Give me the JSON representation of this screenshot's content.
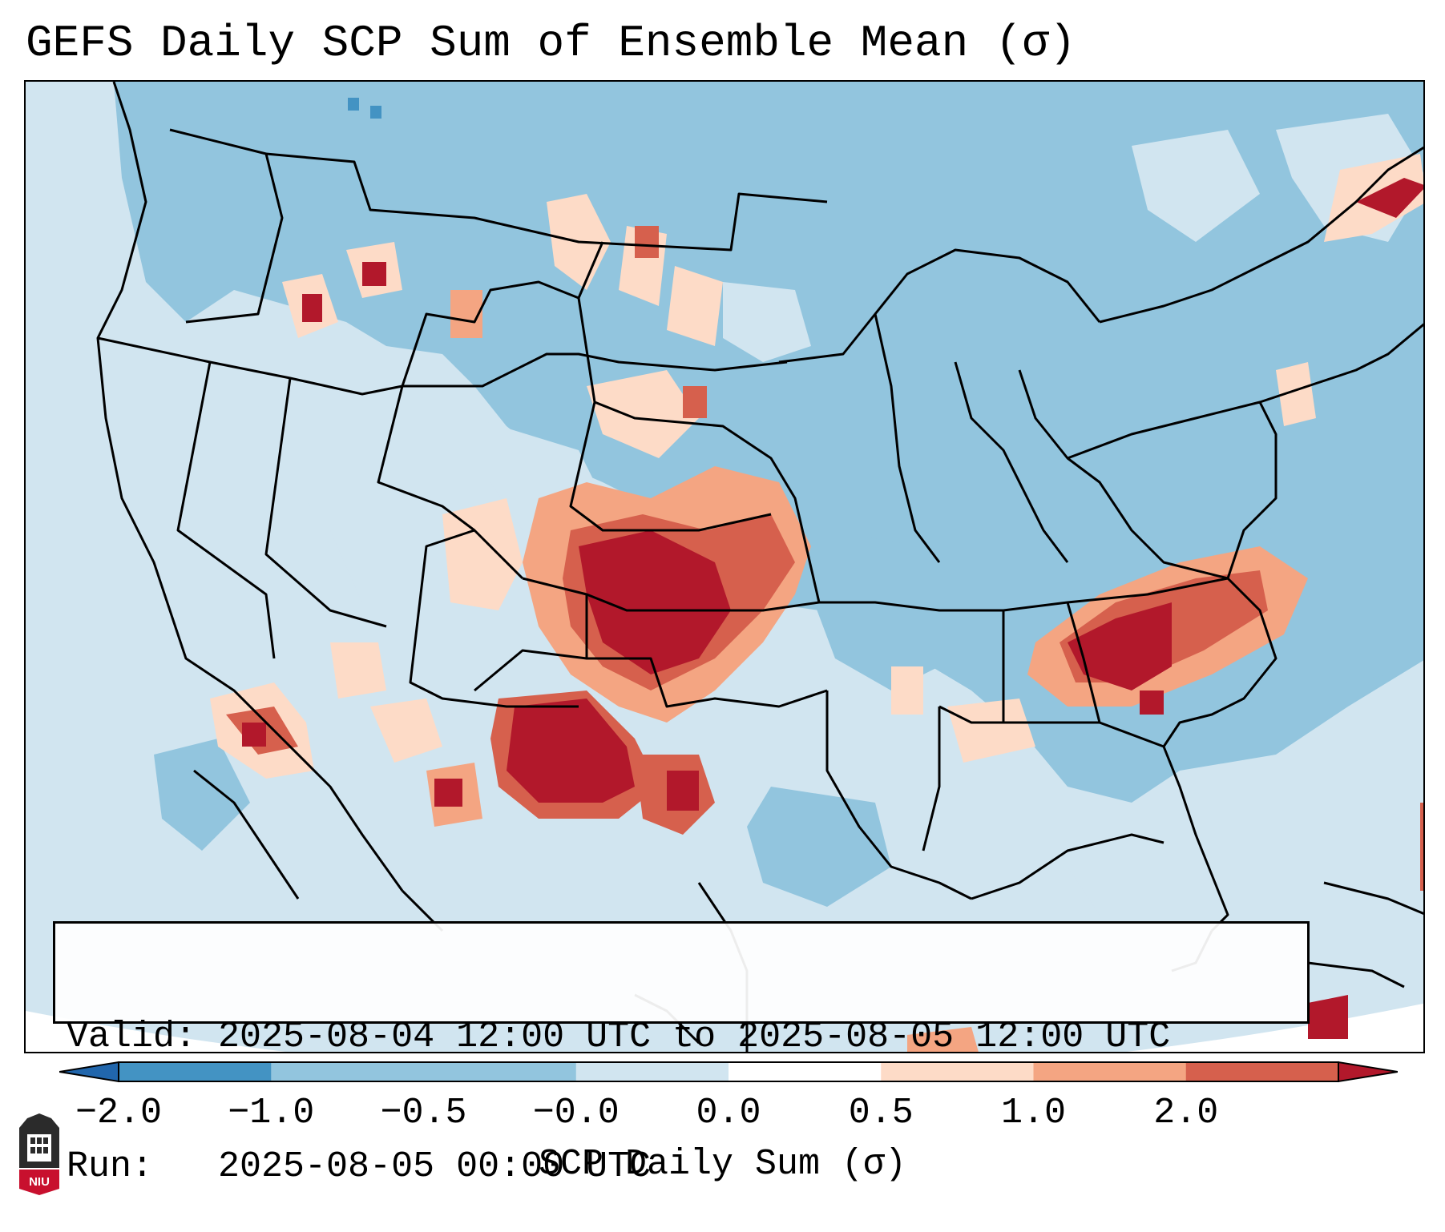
{
  "title": "GEFS Daily SCP Sum of Ensemble Mean (σ)",
  "info": {
    "valid_line": "Valid: 2025-08-04 12:00 UTC to 2025-08-05 12:00 UTC",
    "run_line": "Run:   2025-08-05 00:00 UTC"
  },
  "colorbar": {
    "label": "SCP Daily Sum (σ)",
    "ticks": [
      "−2.0",
      "−1.0",
      "−0.5",
      "−0.0",
      "0.0",
      "0.5",
      "1.0",
      "2.0"
    ],
    "bins": [
      {
        "color": "#4393c3"
      },
      {
        "color": "#92c5de"
      },
      {
        "color": "#92c5de"
      },
      {
        "color": "#d1e5f0"
      },
      {
        "color": "#ffffff"
      },
      {
        "color": "#fddbc7"
      },
      {
        "color": "#f4a582"
      },
      {
        "color": "#d6604d"
      }
    ],
    "under_color": "#2166ac",
    "over_color": "#b2182b"
  },
  "legend_colors": {
    "strong_neg": "#4393c3",
    "neg": "#92c5de",
    "weak_neg": "#d1e5f0",
    "weak_pos": "#fddbc7",
    "pos": "#f4a582",
    "strong_pos": "#d6604d",
    "extreme_pos": "#b2182b"
  },
  "logo": {
    "text": "NIU",
    "color": "#c8102e"
  }
}
